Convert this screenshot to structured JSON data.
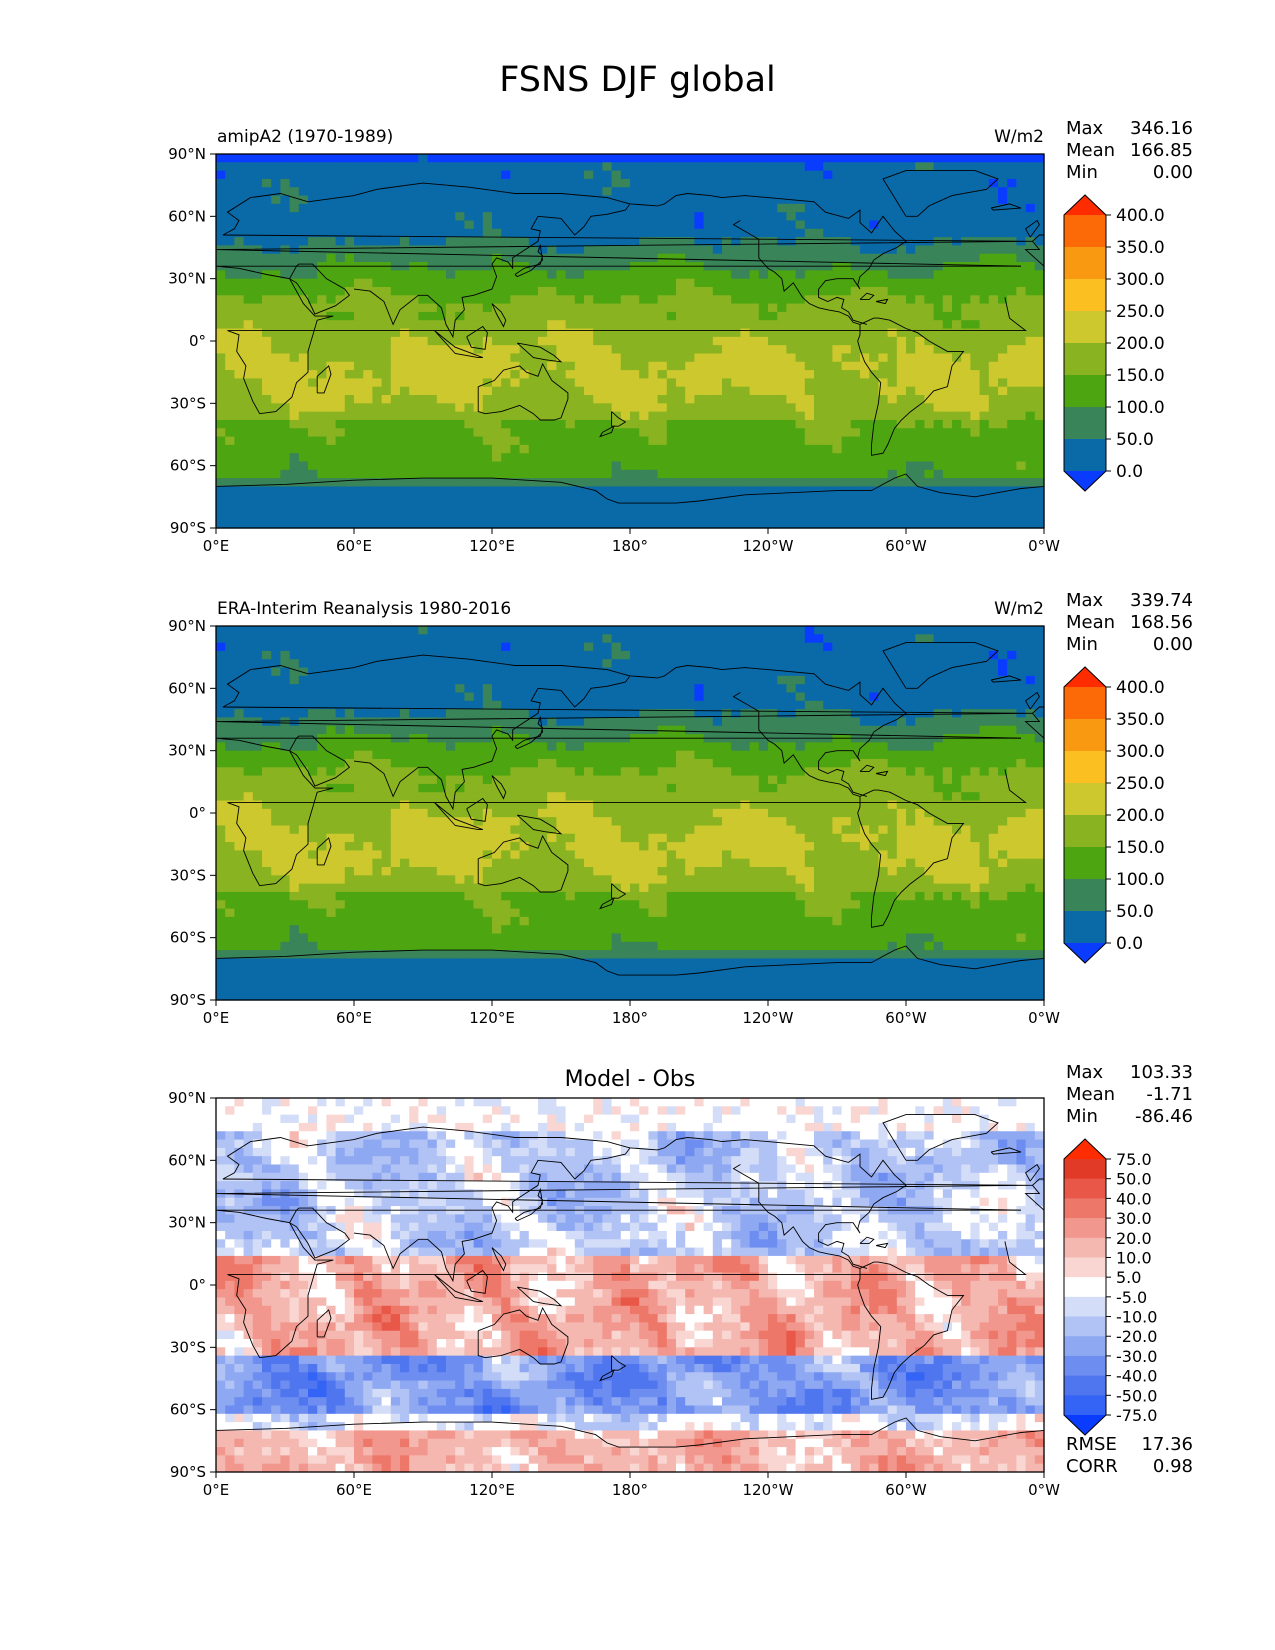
{
  "figure": {
    "title": "FSNS DJF global"
  },
  "colors": {
    "levels": [
      "#0a3cff",
      "#0a6aa8",
      "#398458",
      "#4da611",
      "#89b321",
      "#ccc82d",
      "#fbbf22",
      "#f99912",
      "#fb6a06",
      "#ff2c00"
    ],
    "diff_levels": [
      "#0a3cff",
      "#2f5eff",
      "#4a72f1",
      "#6b8cef",
      "#8ea8f2",
      "#b2c2f5",
      "#d2dcf8",
      "#eef1fc",
      "#ffffff",
      "#ffffff",
      "#fde8e6",
      "#f9c8c3",
      "#f5a79f",
      "#f2867c",
      "#ee6658",
      "#ea4a3c",
      "#e33020",
      "#ff2c00"
    ],
    "ocean_line": "#000000"
  },
  "chart_data": [
    {
      "type": "heatmap",
      "subtitle_left": "amipA2 (1970-1989)",
      "subtitle_right": "W/m2",
      "stats": {
        "max_label": "Max",
        "max": "346.16",
        "mean_label": "Mean",
        "mean": "166.85",
        "min_label": "Min",
        "min": "0.00"
      },
      "x_ticks": [
        "0°E",
        "60°E",
        "120°E",
        "180°",
        "120°W",
        "60°W",
        "0°W"
      ],
      "y_ticks": [
        "90°N",
        "60°N",
        "30°N",
        "0°",
        "30°S",
        "60°S",
        "90°S"
      ],
      "colorbar_labels": [
        "400.0",
        "350.0",
        "300.0",
        "250.0",
        "200.0",
        "150.0",
        "100.0",
        "50.0",
        "0.0"
      ],
      "levels": [
        0,
        50,
        100,
        150,
        200,
        250,
        300,
        350,
        400
      ]
    },
    {
      "type": "heatmap",
      "subtitle_left": "ERA-Interim Reanalysis 1980-2016",
      "subtitle_right": "W/m2",
      "stats": {
        "max_label": "Max",
        "max": "339.74",
        "mean_label": "Mean",
        "mean": "168.56",
        "min_label": "Min",
        "min": "0.00"
      },
      "x_ticks": [
        "0°E",
        "60°E",
        "120°E",
        "180°",
        "120°W",
        "60°W",
        "0°W"
      ],
      "y_ticks": [
        "90°N",
        "60°N",
        "30°N",
        "0°",
        "30°S",
        "60°S",
        "90°S"
      ],
      "colorbar_labels": [
        "400.0",
        "350.0",
        "300.0",
        "250.0",
        "200.0",
        "150.0",
        "100.0",
        "50.0",
        "0.0"
      ],
      "levels": [
        0,
        50,
        100,
        150,
        200,
        250,
        300,
        350,
        400
      ]
    },
    {
      "type": "heatmap",
      "title": "Model - Obs",
      "stats": {
        "max_label": "Max",
        "max": "103.33",
        "mean_label": "Mean",
        "mean": "-1.71",
        "min_label": "Min",
        "min": "-86.46"
      },
      "x_ticks": [
        "0°E",
        "60°E",
        "120°E",
        "180°",
        "120°W",
        "60°W",
        "0°W"
      ],
      "y_ticks": [
        "90°N",
        "60°N",
        "30°N",
        "0°",
        "30°S",
        "60°S",
        "90°S"
      ],
      "colorbar_labels": [
        "75.0",
        "50.0",
        "40.0",
        "30.0",
        "20.0",
        "10.0",
        "5.0",
        "-5.0",
        "-10.0",
        "-20.0",
        "-30.0",
        "-40.0",
        "-50.0",
        "-75.0"
      ],
      "levels": [
        -75,
        -50,
        -40,
        -30,
        -20,
        -10,
        -5,
        5,
        10,
        20,
        30,
        40,
        50,
        75
      ],
      "metrics": {
        "rmse_label": "RMSE",
        "rmse": "17.36",
        "corr_label": "CORR",
        "corr": "0.98"
      }
    }
  ]
}
